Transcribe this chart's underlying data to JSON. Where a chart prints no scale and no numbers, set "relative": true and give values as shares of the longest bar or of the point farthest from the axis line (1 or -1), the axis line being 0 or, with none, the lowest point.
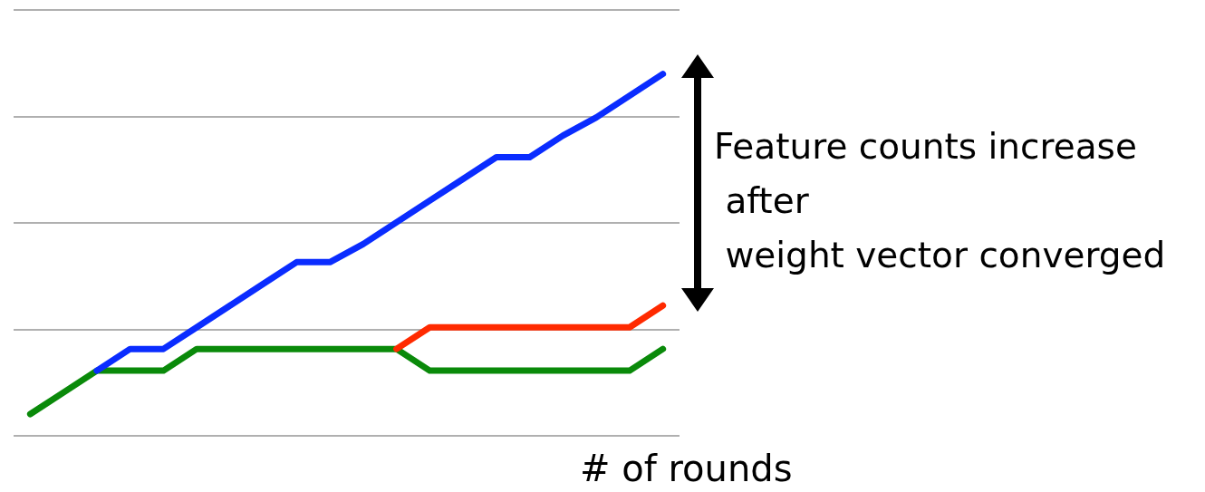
{
  "chart_data": {
    "type": "line",
    "relative": true,
    "grid": "y",
    "marker": "none",
    "line_style": "solid",
    "legend": false,
    "xlabel": "# of rounds",
    "annotations": [
      "Feature counts increase\n after\n weight vector converged"
    ],
    "categories": [
      null,
      null,
      null,
      null,
      null,
      null,
      null,
      null,
      null,
      null,
      null,
      null,
      null,
      null,
      null,
      null,
      null,
      null,
      null,
      null
    ],
    "series": [
      {
        "color": "#0a2cff",
        "values": [
          null,
          null,
          0.18,
          0.24,
          0.24,
          0.3,
          0.36,
          0.42,
          0.48,
          0.48,
          0.53,
          0.59,
          0.65,
          0.71,
          0.77,
          0.77,
          0.83,
          0.88,
          0.94,
          1
        ]
      },
      {
        "color": "#ff2a00",
        "values": [
          null,
          null,
          null,
          null,
          null,
          null,
          null,
          null,
          null,
          null,
          null,
          0.24,
          0.3,
          0.3,
          0.3,
          0.3,
          0.3,
          0.3,
          0.3,
          0.36
        ]
      },
      {
        "color": "#0a8a0a",
        "values": [
          0.06,
          0.12,
          0.18,
          0.18,
          0.18,
          0.24,
          0.24,
          0.24,
          0.24,
          0.24,
          0.24,
          0.24,
          0.18,
          0.18,
          0.18,
          0.18,
          0.18,
          0.18,
          0.18,
          0.24
        ]
      }
    ]
  }
}
